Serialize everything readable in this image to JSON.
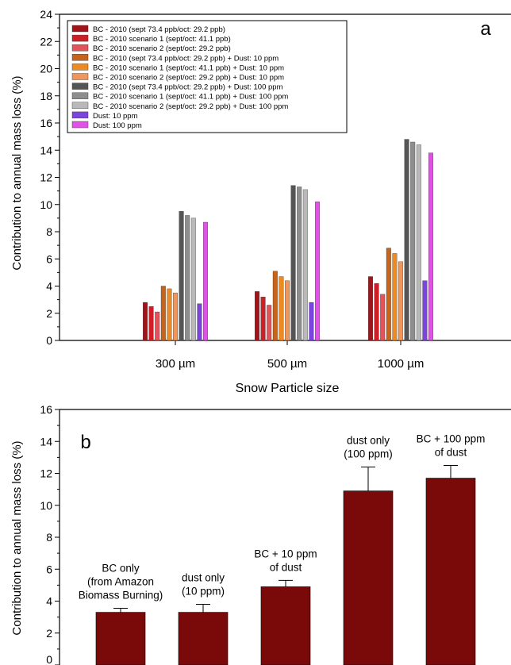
{
  "chart_data": [
    {
      "type": "bar",
      "panel_label": "a",
      "xlabel": "Snow Particle size",
      "ylabel": "Contribution to annual mass loss (%)",
      "ylim": [
        0,
        24
      ],
      "yticks": [
        "0",
        "2",
        "4",
        "6",
        "8",
        "10",
        "12",
        "14",
        "16",
        "18",
        "20",
        "22",
        "24"
      ],
      "categories": [
        "300 µm",
        "500 µm",
        "1000 µm"
      ],
      "legend_position": "top-left",
      "grid": false,
      "series": [
        {
          "name": "BC - 2010 (sept 73.4 ppb/oct: 29.2 ppb)",
          "color": "#a0141a",
          "values": [
            2.8,
            3.6,
            4.7
          ]
        },
        {
          "name": "BC - 2010 scenario 1 (sept/oct: 41.1 ppb)",
          "color": "#cf1f26",
          "values": [
            2.5,
            3.2,
            4.2
          ]
        },
        {
          "name": "BC - 2010 scenario 2 (sept/oct: 29.2 ppb)",
          "color": "#e2535a",
          "values": [
            2.1,
            2.6,
            3.4
          ]
        },
        {
          "name": "BC - 2010 (sept 73.4 ppb/oct: 29.2 ppb) + Dust: 10 ppm",
          "color": "#c5641a",
          "values": [
            4.0,
            5.1,
            6.8
          ]
        },
        {
          "name": "BC - 2010 scenario 1 (sept/oct: 41.1 ppb) + Dust: 10 ppm",
          "color": "#ee8a22",
          "values": [
            3.8,
            4.7,
            6.4
          ]
        },
        {
          "name": "BC - 2010 scenario 2 (sept/oct: 29.2 ppb) + Dust: 10 ppm",
          "color": "#f0965a",
          "values": [
            3.5,
            4.4,
            5.8
          ]
        },
        {
          "name": "BC - 2010 (sept 73.4 ppb/oct: 29.2 ppb) + Dust: 100 ppm",
          "color": "#555555",
          "values": [
            9.5,
            11.4,
            14.8
          ]
        },
        {
          "name": "BC - 2010 scenario 1 (sept/oct: 41.1 ppb) + Dust: 100 ppm",
          "color": "#8e8e8e",
          "values": [
            9.2,
            11.3,
            14.6
          ]
        },
        {
          "name": "BC - 2010 scenario 2 (sept/oct: 29.2 ppb) + Dust: 100 ppm",
          "color": "#b9b9b9",
          "values": [
            9.0,
            11.1,
            14.4
          ]
        },
        {
          "name": "Dust: 10 ppm",
          "color": "#7b44df",
          "values": [
            2.7,
            2.8,
            4.4
          ]
        },
        {
          "name": "Dust: 100 ppm",
          "color": "#e052e6",
          "values": [
            8.7,
            10.2,
            13.8
          ]
        }
      ]
    },
    {
      "type": "bar",
      "panel_label": "b",
      "xlabel": "",
      "ylabel": "Contribution to annual mass loss (%)",
      "ylim": [
        0,
        16
      ],
      "yticks": [
        "0",
        "2",
        "4",
        "6",
        "8",
        "10",
        "12",
        "14",
        "16"
      ],
      "grid": false,
      "bar_color": "#7a0a0a",
      "categories": [
        [
          "BC only",
          "(from Amazon",
          "Biomass Burning)"
        ],
        [
          "dust only",
          "(10 ppm)"
        ],
        [
          "BC + 10 ppm",
          "of dust"
        ],
        [
          "dust only",
          "(100 ppm)"
        ],
        [
          "BC + 100 ppm",
          "of dust"
        ]
      ],
      "values": [
        3.3,
        3.3,
        4.9,
        10.9,
        11.7
      ],
      "errors": [
        0.25,
        0.5,
        0.4,
        1.5,
        0.8
      ]
    }
  ]
}
